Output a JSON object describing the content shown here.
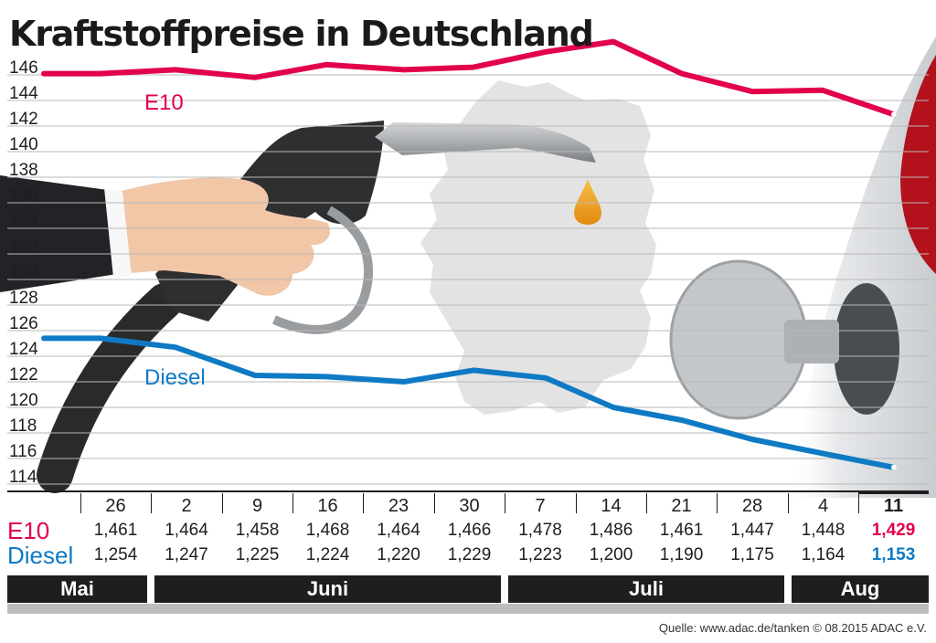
{
  "title": "Kraftstoffpreise in Deutschland",
  "chart_data": {
    "type": "line",
    "title": "Kraftstoffpreise in Deutschland",
    "xlabel": "",
    "ylabel": "",
    "ylim": [
      114,
      146
    ],
    "yticks": [
      146,
      144,
      142,
      140,
      138,
      136,
      134,
      132,
      130,
      128,
      126,
      124,
      122,
      120,
      118,
      116,
      114
    ],
    "grid": true,
    "categories": [
      "26",
      "2",
      "9",
      "16",
      "23",
      "30",
      "7",
      "14",
      "21",
      "28",
      "4",
      "11"
    ],
    "series": [
      {
        "name": "E10",
        "color": "#e2004a",
        "values": [
          146.1,
          146.4,
          145.8,
          146.8,
          146.4,
          146.6,
          147.8,
          148.6,
          146.1,
          144.7,
          144.8,
          142.9
        ]
      },
      {
        "name": "Diesel",
        "color": "#0f7ac4",
        "values": [
          125.4,
          124.7,
          122.5,
          122.4,
          122.0,
          122.9,
          122.3,
          120.0,
          119.0,
          117.5,
          116.4,
          115.3
        ]
      }
    ],
    "table": {
      "row_labels": [
        "E10",
        "Diesel"
      ],
      "e10": [
        "1,461",
        "1,464",
        "1,458",
        "1,468",
        "1,464",
        "1,466",
        "1,478",
        "1,486",
        "1,461",
        "1,447",
        "1,448",
        "1,429"
      ],
      "diesel": [
        "1,254",
        "1,247",
        "1,225",
        "1,224",
        "1,220",
        "1,229",
        "1,223",
        "1,200",
        "1,190",
        "1,175",
        "1,164",
        "1,153"
      ]
    },
    "months": [
      {
        "label": "Mai",
        "span": 1
      },
      {
        "label": "Juni",
        "span": 5
      },
      {
        "label": "Juli",
        "span": 4
      },
      {
        "label": "Aug",
        "span": 2
      }
    ]
  },
  "source": "Quelle: www.adac.de/tanken  © 08.2015  ADAC e.V."
}
